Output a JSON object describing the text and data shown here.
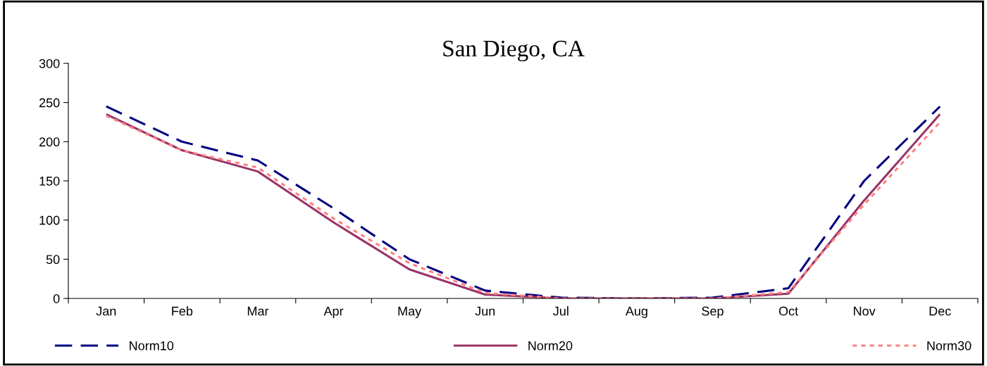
{
  "chart_data": {
    "type": "line",
    "title": "San Diego, CA",
    "categories": [
      "Jan",
      "Feb",
      "Mar",
      "Apr",
      "May",
      "Jun",
      "Jul",
      "Aug",
      "Sep",
      "Oct",
      "Nov",
      "Dec"
    ],
    "series": [
      {
        "name": "Norm10",
        "color": "#000080",
        "line_style": "dashed",
        "values": [
          245,
          200,
          176,
          115,
          50,
          10,
          1,
          0,
          1,
          13,
          150,
          245
        ]
      },
      {
        "name": "Norm20",
        "color": "#993366",
        "line_style": "solid",
        "values": [
          235,
          189,
          162,
          97,
          37,
          5,
          0,
          0,
          0,
          6,
          125,
          235
        ]
      },
      {
        "name": "Norm30",
        "color": "#ff8080",
        "line_style": "dotted",
        "values": [
          233,
          189,
          167,
          102,
          45,
          7,
          0,
          0,
          0,
          8,
          120,
          225
        ]
      }
    ],
    "ylim": [
      0,
      300
    ],
    "yticks": [
      0,
      50,
      100,
      150,
      200,
      250,
      300
    ],
    "grid": false,
    "legend": "bottom",
    "marker": "none"
  }
}
